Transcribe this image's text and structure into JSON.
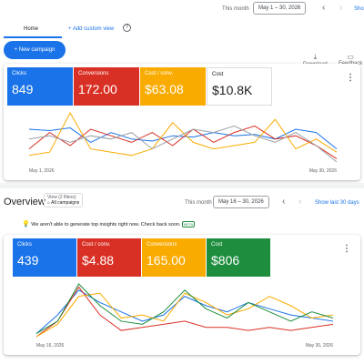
{
  "top_bar": {
    "period_label": "This month",
    "date_range": "May 1 – 30, 2026",
    "show_link": "Sho"
  },
  "tabs": {
    "home": "Home",
    "add_view": "Add custom view"
  },
  "actions": {
    "new_campaign": "New campaign",
    "download": "Download",
    "feedback": "Feedback"
  },
  "overview": {
    "title": "Overview",
    "view_filter": "View (2 filters)",
    "view_name": "All campaigns",
    "period_label": "This month",
    "date_range": "May 16 – 30, 2026",
    "show_last": "Show last 30 days",
    "insight": "We aren't able to generate top insights right now. Check back soon.",
    "badge": "BETA"
  },
  "chart_data": [
    {
      "type": "line",
      "categories": [
        "May 1, 2026",
        null,
        null,
        null,
        null,
        null,
        null,
        null,
        null,
        null,
        null,
        null,
        null,
        null,
        null,
        "May 30, 2026"
      ],
      "series": [
        {
          "name": "Clicks",
          "total": "849",
          "color": "#1a73e8",
          "selected": true,
          "values": [
            60,
            58,
            62,
            40,
            55,
            45,
            42,
            50,
            48,
            55,
            50,
            52,
            45,
            60,
            55,
            30
          ]
        },
        {
          "name": "Conversions",
          "total": "172.00",
          "color": "#d93025",
          "selected": true,
          "values": [
            30,
            55,
            35,
            60,
            50,
            40,
            55,
            35,
            60,
            40,
            55,
            65,
            45,
            50,
            35,
            15
          ]
        },
        {
          "name": "Cost / conv.",
          "total": "$63.08",
          "color": "#f9ab00",
          "selected": true,
          "values": [
            20,
            25,
            85,
            30,
            25,
            20,
            30,
            70,
            40,
            30,
            35,
            40,
            75,
            30,
            45,
            25
          ]
        },
        {
          "name": "Cost",
          "total": "$10.8K",
          "color": "#9aa0a6",
          "selected": false,
          "values": [
            45,
            50,
            40,
            50,
            45,
            55,
            30,
            45,
            60,
            55,
            65,
            50,
            40,
            55,
            35,
            10
          ]
        }
      ]
    },
    {
      "type": "line",
      "categories": [
        "May 16, 2026",
        null,
        null,
        null,
        null,
        null,
        null,
        null,
        null,
        null,
        null,
        null,
        null,
        null,
        "May 30, 2026"
      ],
      "series": [
        {
          "name": "Clicks",
          "total": "439",
          "color": "#1a73e8",
          "selected": true,
          "values": [
            10,
            40,
            80,
            60,
            45,
            30,
            40,
            70,
            55,
            45,
            60,
            50,
            40,
            35,
            30
          ]
        },
        {
          "name": "Cost / conv.",
          "total": "$4.88",
          "color": "#d93025",
          "selected": true,
          "values": [
            5,
            30,
            85,
            40,
            15,
            20,
            25,
            30,
            20,
            20,
            15,
            20,
            15,
            20,
            25
          ]
        },
        {
          "name": "Conversions",
          "total": "165.00",
          "color": "#f9ab00",
          "selected": true,
          "values": [
            5,
            25,
            70,
            75,
            35,
            40,
            30,
            75,
            60,
            40,
            50,
            70,
            55,
            35,
            40
          ]
        },
        {
          "name": "Cost",
          "total": "$806",
          "color": "#1e8e3e",
          "selected": true,
          "values": [
            10,
            30,
            90,
            55,
            30,
            25,
            45,
            80,
            50,
            35,
            60,
            45,
            30,
            45,
            35
          ]
        }
      ]
    }
  ]
}
